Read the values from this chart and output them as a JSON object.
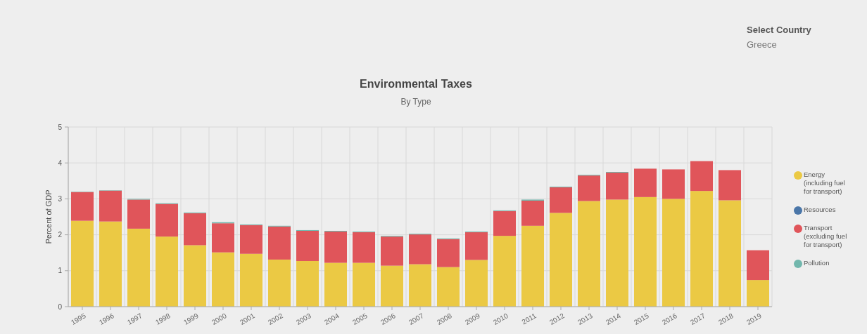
{
  "chart_data": {
    "type": "bar",
    "title": "Environmental Taxes",
    "subtitle": "By Type",
    "ylabel": "Percent of GDP",
    "stacked": true,
    "grid": true,
    "legend": "right",
    "annotations": [
      "Select Country",
      "Greece"
    ],
    "categories": [
      "1995",
      "1996",
      "1997",
      "1998",
      "1999",
      "2000",
      "2001",
      "2002",
      "2003",
      "2004",
      "2005",
      "2006",
      "2007",
      "2008",
      "2009",
      "2010",
      "2011",
      "2012",
      "2013",
      "2014",
      "2015",
      "2016",
      "2017",
      "2018",
      "2019"
    ],
    "ylim": [
      0,
      5
    ],
    "yticks": [
      0,
      1,
      2,
      3,
      4,
      5
    ],
    "series": [
      {
        "name": "Energy (including fuel for transport)",
        "color": "#ebc944",
        "values": [
          2.39,
          2.37,
          2.17,
          1.95,
          1.71,
          1.51,
          1.47,
          1.31,
          1.27,
          1.22,
          1.22,
          1.14,
          1.18,
          1.1,
          1.3,
          1.97,
          2.25,
          2.61,
          2.94,
          2.98,
          3.05,
          3.0,
          3.22,
          2.96,
          0.74
        ]
      },
      {
        "name": "Resources",
        "color": "#4a76a8",
        "values": [
          0,
          0,
          0,
          0,
          0,
          0,
          0,
          0,
          0,
          0,
          0,
          0,
          0,
          0,
          0,
          0,
          0,
          0,
          0,
          0,
          0,
          0,
          0,
          0,
          0
        ]
      },
      {
        "name": "Transport (excluding fuel for transport)",
        "color": "#e0555a",
        "values": [
          0.8,
          0.86,
          0.81,
          0.91,
          0.89,
          0.81,
          0.8,
          0.92,
          0.84,
          0.87,
          0.85,
          0.81,
          0.83,
          0.78,
          0.77,
          0.69,
          0.7,
          0.71,
          0.71,
          0.75,
          0.79,
          0.82,
          0.83,
          0.84,
          0.83
        ]
      },
      {
        "name": "Pollution",
        "color": "#72b7ad",
        "values": [
          0.01,
          0.01,
          0.02,
          0.02,
          0.02,
          0.03,
          0.02,
          0.02,
          0.02,
          0.02,
          0.02,
          0.02,
          0.02,
          0.02,
          0.02,
          0.02,
          0.03,
          0.02,
          0.02,
          0.02,
          0,
          0,
          0,
          0,
          0
        ]
      }
    ]
  }
}
